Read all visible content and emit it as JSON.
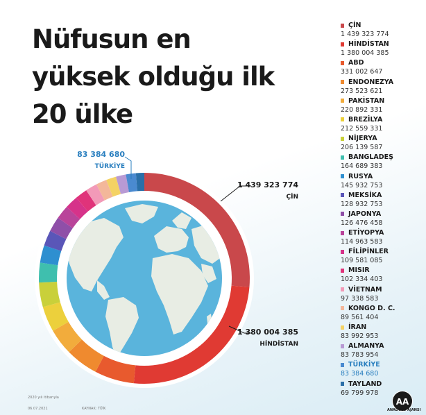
{
  "title_lines": [
    "Nüfusun en",
    "yüksek olduğu ilk",
    "20 ülke"
  ],
  "colors": {
    "highlight": "#2a7fbf",
    "ocean": "#5ab4dc",
    "land": "#e8ede4"
  },
  "callouts": {
    "china": {
      "value": "1 439 323 774",
      "label": "ÇİN"
    },
    "india": {
      "value": "1 380 004 385",
      "label": "HİNDİSTAN"
    },
    "turkey": {
      "value": "83 384 680",
      "label": "TÜRKİYE"
    }
  },
  "chart_data": {
    "type": "donut",
    "series": [
      {
        "name": "ÇİN",
        "value_text": "1 439 323 774",
        "value": 1439323774,
        "color": "#c9484b"
      },
      {
        "name": "HİNDİSTAN",
        "value_text": "1 380 004 385",
        "value": 1380004385,
        "color": "#e03a33"
      },
      {
        "name": "ABD",
        "value_text": "331 002 647",
        "value": 331002647,
        "color": "#e85a2e"
      },
      {
        "name": "ENDONEZYA",
        "value_text": "273 523 621",
        "value": 273523621,
        "color": "#ef8a2f"
      },
      {
        "name": "PAKİSTAN",
        "value_text": "220 892 331",
        "value": 220892331,
        "color": "#f2ac3c"
      },
      {
        "name": "BREZİLYA",
        "value_text": "212 559 331",
        "value": 212559331,
        "color": "#ecd03c"
      },
      {
        "name": "NİJERYA",
        "value_text": "206 139 587",
        "value": 206139587,
        "color": "#c9d03a"
      },
      {
        "name": "BANGLADEŞ",
        "value_text": "164 689 383",
        "value": 164689383,
        "color": "#3fbfae"
      },
      {
        "name": "RUSYA",
        "value_text": "145 932 753",
        "value": 145932753,
        "color": "#2e8fd0"
      },
      {
        "name": "MEKSİKA",
        "value_text": "128 932 753",
        "value": 128932753,
        "color": "#5a56b8"
      },
      {
        "name": "JAPONYA",
        "value_text": "126 476 458",
        "value": 126476458,
        "color": "#8f4fa8"
      },
      {
        "name": "ETİYOPYA",
        "value_text": "114 963 583",
        "value": 114963583,
        "color": "#b9449a"
      },
      {
        "name": "FİLİPİNLER",
        "value_text": "109 581 085",
        "value": 109581085,
        "color": "#d6338a"
      },
      {
        "name": "MISIR",
        "value_text": "102 334 403",
        "value": 102334403,
        "color": "#e0337a"
      },
      {
        "name": "VİETNAM",
        "value_text": "97 338 583",
        "value": 97338583,
        "color": "#f29ab8"
      },
      {
        "name": "KONGO D. C.",
        "value_text": "89 561 404",
        "value": 89561404,
        "color": "#f3b79a"
      },
      {
        "name": "İRAN",
        "value_text": "83 992 953",
        "value": 83992953,
        "color": "#f4d264"
      },
      {
        "name": "ALMANYA",
        "value_text": "83 783 954",
        "value": 83783954,
        "color": "#b89ad4"
      },
      {
        "name": "TÜRKİYE",
        "value_text": "83 384 680",
        "value": 83384680,
        "color": "#4a8ad0",
        "highlight": true
      },
      {
        "name": "TAYLAND",
        "value_text": "69 799 978",
        "value": 69799978,
        "color": "#2a6fa8"
      }
    ]
  },
  "footer": {
    "left_top": "2020 yılı itibarıyla",
    "left_date": "06.07.2021",
    "source": "KAYNAK: TÜİK",
    "logo_text": "ANADOLU AJANSI",
    "logo_mark": "AA"
  }
}
